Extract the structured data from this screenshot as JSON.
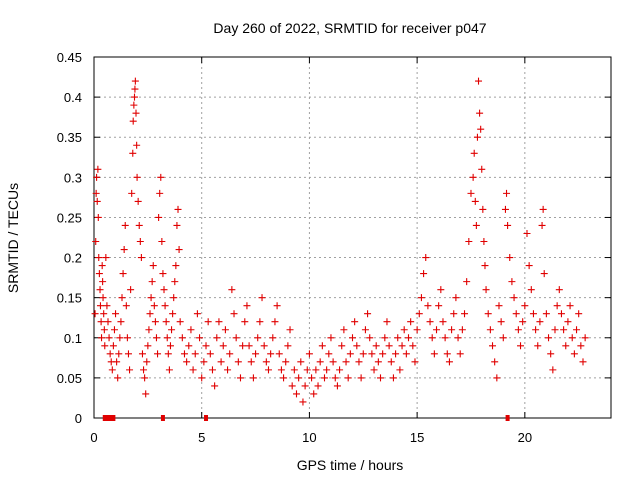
{
  "chart_data": {
    "type": "scatter",
    "title": "Day 260 of 2022, SRMTID for receiver p047",
    "xlabel": "GPS time / hours",
    "ylabel": "SRMTID / TECUs",
    "xlim": [
      0,
      24
    ],
    "ylim": [
      0,
      0.45
    ],
    "x_ticks": [
      0,
      5,
      10,
      15,
      20
    ],
    "y_ticks": [
      0,
      0.05,
      0.1,
      0.15,
      0.2,
      0.25,
      0.3,
      0.35,
      0.4,
      0.45
    ],
    "x_tick_labels": [
      "0",
      "5",
      "10",
      "15",
      "20"
    ],
    "y_tick_labels": [
      "0",
      "0.05",
      "0.1",
      "0.15",
      "0.2",
      "0.25",
      "0.3",
      "0.35",
      "0.4",
      "0.45"
    ],
    "grid": true,
    "marker": "+",
    "color": "#e00000",
    "series": [
      {
        "name": "SRMTID",
        "points": [
          [
            0.05,
            0.13
          ],
          [
            0.08,
            0.22
          ],
          [
            0.1,
            0.28
          ],
          [
            0.12,
            0.3
          ],
          [
            0.15,
            0.27
          ],
          [
            0.18,
            0.31
          ],
          [
            0.2,
            0.25
          ],
          [
            0.22,
            0.2
          ],
          [
            0.25,
            0.18
          ],
          [
            0.28,
            0.16
          ],
          [
            0.3,
            0.14
          ],
          [
            0.33,
            0.12
          ],
          [
            0.35,
            0.1
          ],
          [
            0.38,
            0.19
          ],
          [
            0.4,
            0.17
          ],
          [
            0.42,
            0.15
          ],
          [
            0.45,
            0.13
          ],
          [
            0.48,
            0.11
          ],
          [
            0.5,
            0.09
          ],
          [
            0.55,
            0.2
          ],
          [
            0.6,
            0.14
          ],
          [
            0.65,
            0.12
          ],
          [
            0.7,
            0.1
          ],
          [
            0.75,
            0.08
          ],
          [
            0.8,
            0.07
          ],
          [
            0.85,
            0.06
          ],
          [
            0.9,
            0.09
          ],
          [
            0.95,
            0.11
          ],
          [
            1.0,
            0.13
          ],
          [
            1.05,
            0.07
          ],
          [
            1.1,
            0.05
          ],
          [
            1.15,
            0.08
          ],
          [
            1.2,
            0.1
          ],
          [
            1.25,
            0.12
          ],
          [
            1.3,
            0.15
          ],
          [
            1.35,
            0.18
          ],
          [
            1.4,
            0.21
          ],
          [
            1.45,
            0.24
          ],
          [
            1.5,
            0.14
          ],
          [
            1.55,
            0.1
          ],
          [
            1.6,
            0.08
          ],
          [
            1.65,
            0.06
          ],
          [
            1.7,
            0.16
          ],
          [
            1.75,
            0.28
          ],
          [
            1.8,
            0.33
          ],
          [
            1.82,
            0.37
          ],
          [
            1.85,
            0.39
          ],
          [
            1.88,
            0.4
          ],
          [
            1.9,
            0.41
          ],
          [
            1.92,
            0.42
          ],
          [
            1.95,
            0.38
          ],
          [
            1.98,
            0.34
          ],
          [
            2.0,
            0.3
          ],
          [
            2.05,
            0.27
          ],
          [
            2.1,
            0.24
          ],
          [
            2.15,
            0.22
          ],
          [
            2.2,
            0.2
          ],
          [
            2.25,
            0.08
          ],
          [
            2.3,
            0.06
          ],
          [
            2.35,
            0.05
          ],
          [
            2.4,
            0.03
          ],
          [
            2.45,
            0.07
          ],
          [
            2.5,
            0.09
          ],
          [
            2.55,
            0.11
          ],
          [
            2.6,
            0.13
          ],
          [
            2.65,
            0.15
          ],
          [
            2.7,
            0.17
          ],
          [
            2.75,
            0.19
          ],
          [
            2.8,
            0.14
          ],
          [
            2.85,
            0.12
          ],
          [
            2.9,
            0.1
          ],
          [
            2.95,
            0.08
          ],
          [
            3.0,
            0.25
          ],
          [
            3.05,
            0.28
          ],
          [
            3.1,
            0.3
          ],
          [
            3.15,
            0.22
          ],
          [
            3.2,
            0.18
          ],
          [
            3.25,
            0.16
          ],
          [
            3.3,
            0.14
          ],
          [
            3.35,
            0.12
          ],
          [
            3.4,
            0.1
          ],
          [
            3.45,
            0.08
          ],
          [
            3.5,
            0.06
          ],
          [
            3.55,
            0.09
          ],
          [
            3.6,
            0.11
          ],
          [
            3.65,
            0.13
          ],
          [
            3.7,
            0.15
          ],
          [
            3.75,
            0.17
          ],
          [
            3.8,
            0.19
          ],
          [
            3.85,
            0.24
          ],
          [
            3.9,
            0.26
          ],
          [
            3.95,
            0.21
          ],
          [
            4.0,
            0.12
          ],
          [
            4.1,
            0.1
          ],
          [
            4.2,
            0.08
          ],
          [
            4.3,
            0.07
          ],
          [
            4.4,
            0.09
          ],
          [
            4.5,
            0.11
          ],
          [
            4.6,
            0.06
          ],
          [
            4.7,
            0.08
          ],
          [
            4.8,
            0.13
          ],
          [
            4.9,
            0.1
          ],
          [
            5.0,
            0.05
          ],
          [
            5.1,
            0.07
          ],
          [
            5.2,
            0.09
          ],
          [
            5.3,
            0.12
          ],
          [
            5.4,
            0.08
          ],
          [
            5.5,
            0.06
          ],
          [
            5.6,
            0.04
          ],
          [
            5.7,
            0.1
          ],
          [
            5.8,
            0.12
          ],
          [
            5.9,
            0.07
          ],
          [
            6.0,
            0.09
          ],
          [
            6.1,
            0.11
          ],
          [
            6.2,
            0.06
          ],
          [
            6.3,
            0.08
          ],
          [
            6.4,
            0.16
          ],
          [
            6.5,
            0.13
          ],
          [
            6.6,
            0.1
          ],
          [
            6.7,
            0.07
          ],
          [
            6.8,
            0.05
          ],
          [
            6.9,
            0.09
          ],
          [
            7.0,
            0.12
          ],
          [
            7.1,
            0.14
          ],
          [
            7.2,
            0.09
          ],
          [
            7.3,
            0.07
          ],
          [
            7.4,
            0.05
          ],
          [
            7.5,
            0.08
          ],
          [
            7.6,
            0.1
          ],
          [
            7.7,
            0.12
          ],
          [
            7.8,
            0.15
          ],
          [
            7.9,
            0.09
          ],
          [
            8.0,
            0.07
          ],
          [
            8.1,
            0.06
          ],
          [
            8.2,
            0.08
          ],
          [
            8.3,
            0.1
          ],
          [
            8.4,
            0.12
          ],
          [
            8.5,
            0.14
          ],
          [
            8.6,
            0.08
          ],
          [
            8.7,
            0.06
          ],
          [
            8.8,
            0.05
          ],
          [
            8.9,
            0.07
          ],
          [
            9.0,
            0.09
          ],
          [
            9.1,
            0.11
          ],
          [
            9.2,
            0.04
          ],
          [
            9.3,
            0.06
          ],
          [
            9.4,
            0.03
          ],
          [
            9.5,
            0.05
          ],
          [
            9.6,
            0.07
          ],
          [
            9.7,
            0.02
          ],
          [
            9.8,
            0.04
          ],
          [
            9.9,
            0.06
          ],
          [
            10.0,
            0.08
          ],
          [
            10.1,
            0.05
          ],
          [
            10.2,
            0.03
          ],
          [
            10.3,
            0.06
          ],
          [
            10.4,
            0.04
          ],
          [
            10.5,
            0.07
          ],
          [
            10.6,
            0.09
          ],
          [
            10.7,
            0.05
          ],
          [
            10.8,
            0.06
          ],
          [
            10.9,
            0.08
          ],
          [
            11.0,
            0.1
          ],
          [
            11.1,
            0.07
          ],
          [
            11.2,
            0.05
          ],
          [
            11.3,
            0.04
          ],
          [
            11.4,
            0.06
          ],
          [
            11.5,
            0.09
          ],
          [
            11.6,
            0.11
          ],
          [
            11.7,
            0.07
          ],
          [
            11.8,
            0.05
          ],
          [
            11.9,
            0.08
          ],
          [
            12.0,
            0.1
          ],
          [
            12.1,
            0.12
          ],
          [
            12.2,
            0.09
          ],
          [
            12.3,
            0.07
          ],
          [
            12.4,
            0.05
          ],
          [
            12.5,
            0.08
          ],
          [
            12.6,
            0.11
          ],
          [
            12.7,
            0.13
          ],
          [
            12.8,
            0.1
          ],
          [
            12.9,
            0.08
          ],
          [
            13.0,
            0.06
          ],
          [
            13.1,
            0.09
          ],
          [
            13.2,
            0.07
          ],
          [
            13.3,
            0.05
          ],
          [
            13.4,
            0.08
          ],
          [
            13.5,
            0.1
          ],
          [
            13.6,
            0.12
          ],
          [
            13.7,
            0.09
          ],
          [
            13.8,
            0.07
          ],
          [
            13.9,
            0.05
          ],
          [
            14.0,
            0.08
          ],
          [
            14.1,
            0.1
          ],
          [
            14.2,
            0.06
          ],
          [
            14.3,
            0.09
          ],
          [
            14.4,
            0.11
          ],
          [
            14.5,
            0.08
          ],
          [
            14.6,
            0.1
          ],
          [
            14.7,
            0.12
          ],
          [
            14.8,
            0.09
          ],
          [
            14.9,
            0.07
          ],
          [
            15.0,
            0.11
          ],
          [
            15.1,
            0.13
          ],
          [
            15.2,
            0.15
          ],
          [
            15.3,
            0.18
          ],
          [
            15.4,
            0.2
          ],
          [
            15.5,
            0.14
          ],
          [
            15.6,
            0.12
          ],
          [
            15.7,
            0.1
          ],
          [
            15.8,
            0.08
          ],
          [
            15.9,
            0.11
          ],
          [
            16.0,
            0.14
          ],
          [
            16.1,
            0.16
          ],
          [
            16.2,
            0.12
          ],
          [
            16.3,
            0.1
          ],
          [
            16.4,
            0.08
          ],
          [
            16.5,
            0.07
          ],
          [
            16.6,
            0.11
          ],
          [
            16.7,
            0.13
          ],
          [
            16.8,
            0.15
          ],
          [
            16.9,
            0.1
          ],
          [
            17.0,
            0.08
          ],
          [
            17.1,
            0.11
          ],
          [
            17.2,
            0.13
          ],
          [
            17.3,
            0.17
          ],
          [
            17.4,
            0.22
          ],
          [
            17.5,
            0.28
          ],
          [
            17.6,
            0.3
          ],
          [
            17.65,
            0.33
          ],
          [
            17.7,
            0.27
          ],
          [
            17.75,
            0.24
          ],
          [
            17.8,
            0.35
          ],
          [
            17.85,
            0.42
          ],
          [
            17.9,
            0.38
          ],
          [
            17.95,
            0.36
          ],
          [
            18.0,
            0.31
          ],
          [
            18.05,
            0.26
          ],
          [
            18.1,
            0.22
          ],
          [
            18.15,
            0.19
          ],
          [
            18.2,
            0.16
          ],
          [
            18.3,
            0.13
          ],
          [
            18.4,
            0.11
          ],
          [
            18.5,
            0.09
          ],
          [
            18.6,
            0.07
          ],
          [
            18.7,
            0.05
          ],
          [
            18.8,
            0.14
          ],
          [
            18.9,
            0.12
          ],
          [
            19.0,
            0.1
          ],
          [
            19.1,
            0.26
          ],
          [
            19.15,
            0.28
          ],
          [
            19.2,
            0.24
          ],
          [
            19.3,
            0.2
          ],
          [
            19.4,
            0.17
          ],
          [
            19.5,
            0.15
          ],
          [
            19.6,
            0.13
          ],
          [
            19.7,
            0.11
          ],
          [
            19.8,
            0.09
          ],
          [
            19.9,
            0.12
          ],
          [
            20.0,
            0.14
          ],
          [
            20.1,
            0.23
          ],
          [
            20.2,
            0.19
          ],
          [
            20.3,
            0.16
          ],
          [
            20.4,
            0.13
          ],
          [
            20.5,
            0.11
          ],
          [
            20.6,
            0.09
          ],
          [
            20.7,
            0.12
          ],
          [
            20.8,
            0.24
          ],
          [
            20.85,
            0.26
          ],
          [
            20.9,
            0.18
          ],
          [
            21.0,
            0.13
          ],
          [
            21.1,
            0.1
          ],
          [
            21.2,
            0.08
          ],
          [
            21.3,
            0.06
          ],
          [
            21.4,
            0.11
          ],
          [
            21.5,
            0.14
          ],
          [
            21.6,
            0.16
          ],
          [
            21.7,
            0.13
          ],
          [
            21.8,
            0.11
          ],
          [
            21.9,
            0.09
          ],
          [
            22.0,
            0.12
          ],
          [
            22.1,
            0.14
          ],
          [
            22.2,
            0.1
          ],
          [
            22.3,
            0.08
          ],
          [
            22.4,
            0.11
          ],
          [
            22.5,
            0.13
          ],
          [
            22.6,
            0.09
          ],
          [
            22.7,
            0.07
          ],
          [
            22.8,
            0.1
          ]
        ]
      }
    ],
    "gap_markers_x": [
      0.5,
      0.6,
      0.7,
      0.8,
      0.9,
      3.2,
      5.2,
      19.2
    ]
  }
}
